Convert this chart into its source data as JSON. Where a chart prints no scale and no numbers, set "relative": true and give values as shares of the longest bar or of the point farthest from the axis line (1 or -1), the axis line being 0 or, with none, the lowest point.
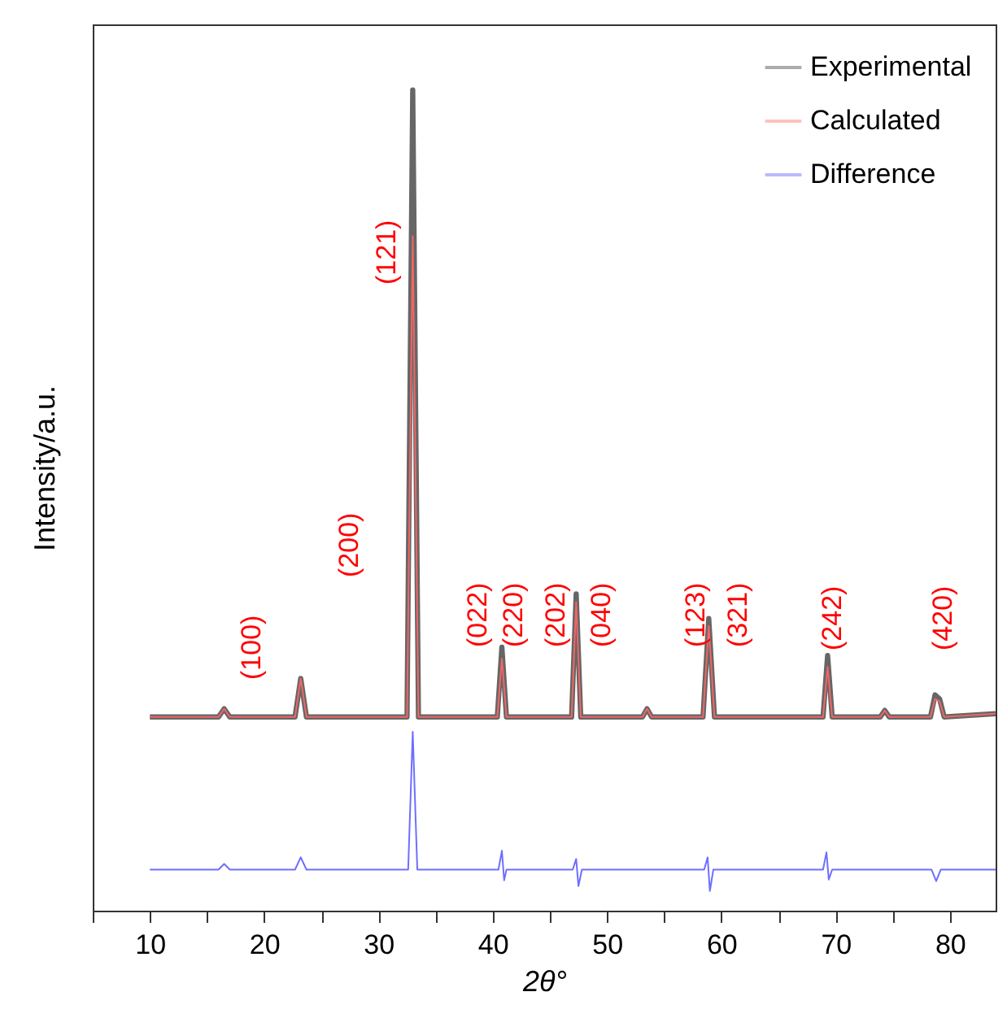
{
  "chart_data": {
    "type": "line",
    "xlabel": "2θ°",
    "ylabel": "Intensity/a.u.",
    "relative": true,
    "xlim": [
      5,
      84
    ],
    "xticks": [
      {
        "value": 5,
        "label": null
      },
      10,
      {
        "value": 15,
        "label": null
      },
      20,
      {
        "value": 25,
        "label": null
      },
      30,
      {
        "value": 35,
        "label": null
      },
      40,
      {
        "value": 45,
        "label": null
      },
      50,
      {
        "value": 55,
        "label": null
      },
      60,
      {
        "value": 65,
        "label": null
      },
      70,
      {
        "value": 75,
        "label": null
      },
      80
    ],
    "tick_labels": "x",
    "legend": "top right",
    "grid": false,
    "marker": "none",
    "line_style": "solid",
    "series": [
      {
        "name": "Experimental",
        "color": "#333333",
        "x": [
          10,
          16,
          16.5,
          17,
          22.7,
          23.2,
          23.7,
          32.5,
          33,
          33.5,
          40.4,
          40.8,
          41.2,
          46.9,
          47.3,
          47.7,
          53.1,
          53.5,
          53.9,
          58.4,
          58.9,
          59.4,
          68.9,
          69.3,
          69.7,
          73.9,
          74.3,
          74.7,
          78.3,
          78.7,
          79.1,
          79.5,
          84
        ],
        "values": [
          0.236,
          0.236,
          0.246,
          0.236,
          0.236,
          0.283,
          0.236,
          0.236,
          1.0,
          0.236,
          0.236,
          0.321,
          0.236,
          0.236,
          0.386,
          0.236,
          0.236,
          0.246,
          0.236,
          0.236,
          0.356,
          0.236,
          0.236,
          0.311,
          0.236,
          0.236,
          0.244,
          0.236,
          0.236,
          0.263,
          0.258,
          0.236,
          0.24
        ]
      },
      {
        "name": "Calculated",
        "color": "#ff6666",
        "x": [
          10,
          16,
          16.5,
          17,
          22.7,
          23.2,
          23.7,
          32.5,
          33,
          33.5,
          40.4,
          40.8,
          41.2,
          46.9,
          47.3,
          47.7,
          53.1,
          53.5,
          53.9,
          58.4,
          58.9,
          59.4,
          68.9,
          69.3,
          69.7,
          73.9,
          74.3,
          74.7,
          78.3,
          78.7,
          79.1,
          79.5,
          84
        ],
        "values": [
          0.236,
          0.236,
          0.246,
          0.236,
          0.236,
          0.283,
          0.236,
          0.236,
          0.822,
          0.236,
          0.236,
          0.307,
          0.236,
          0.236,
          0.376,
          0.236,
          0.236,
          0.246,
          0.236,
          0.236,
          0.347,
          0.236,
          0.236,
          0.297,
          0.236,
          0.236,
          0.244,
          0.236,
          0.236,
          0.258,
          0.255,
          0.236,
          0.24
        ]
      },
      {
        "name": "Difference",
        "color": "#5555ff",
        "x": [
          10,
          16,
          16.5,
          17,
          22.7,
          23.2,
          23.7,
          32.6,
          33,
          33.4,
          40.5,
          40.8,
          41.0,
          41.2,
          47.0,
          47.3,
          47.5,
          47.8,
          58.5,
          58.8,
          59.0,
          59.3,
          68.9,
          69.2,
          69.4,
          69.7,
          78.4,
          78.8,
          79.2,
          84
        ],
        "values": [
          0.05,
          0.05,
          0.057,
          0.05,
          0.05,
          0.065,
          0.05,
          0.05,
          0.218,
          0.05,
          0.05,
          0.073,
          0.037,
          0.05,
          0.05,
          0.063,
          0.03,
          0.05,
          0.05,
          0.065,
          0.024,
          0.05,
          0.05,
          0.071,
          0.038,
          0.05,
          0.05,
          0.036,
          0.05,
          0.05
        ]
      }
    ],
    "annotations": [
      "(100)",
      "(200)",
      "(121)",
      "(022)",
      "(220)",
      "(202)",
      "(040)",
      "(123)",
      "(321)",
      "(242)",
      "(420)"
    ]
  }
}
